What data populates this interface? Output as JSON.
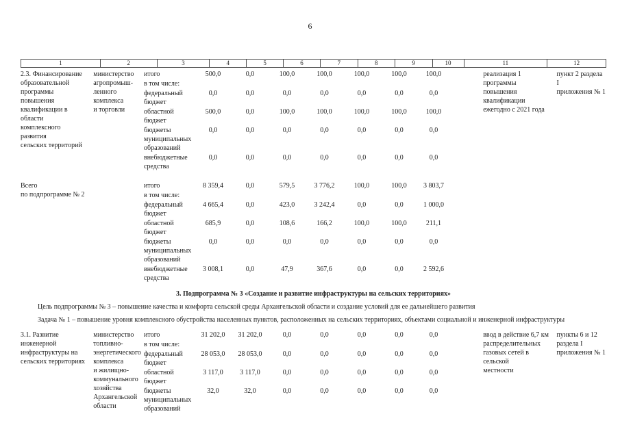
{
  "page": {
    "number": "6"
  },
  "table": {
    "header_cols": [
      "1",
      "2",
      "3",
      "4",
      "5",
      "6",
      "7",
      "8",
      "9",
      "10",
      "11",
      "12"
    ],
    "sections": [
      {
        "col1": "2.3. Финансирование\nобразовательной\nпрограммы повышения\nквалификации в области\nкомплексного развития\nсельских территорий",
        "col2": "министерство\nагропромыш-\nленного\nкомплекса\nи торговли",
        "col11": "реализация 1 программы\nповышения квалификации\nежегодно с 2021 года",
        "col12": "пункт 2 раздела I\nприложения № 1",
        "rows": [
          {
            "label": "итого",
            "v": [
              "500,0",
              "0,0",
              "100,0",
              "100,0",
              "100,0",
              "100,0",
              "100,0"
            ]
          },
          {
            "label": "в том числе:",
            "v": [
              "",
              "",
              "",
              "",
              "",
              "",
              ""
            ]
          },
          {
            "label": "федеральный\nбюджет",
            "v": [
              "0,0",
              "0,0",
              "0,0",
              "0,0",
              "0,0",
              "0,0",
              "0,0"
            ]
          },
          {
            "label": "областной\nбюджет",
            "v": [
              "500,0",
              "0,0",
              "100,0",
              "100,0",
              "100,0",
              "100,0",
              "100,0"
            ]
          },
          {
            "label": "бюджеты\nмуниципальных\nобразований",
            "v": [
              "0,0",
              "0,0",
              "0,0",
              "0,0",
              "0,0",
              "0,0",
              "0,0"
            ]
          },
          {
            "label": "внебюджетные\nсредства",
            "v": [
              "0,0",
              "0,0",
              "0,0",
              "0,0",
              "0,0",
              "0,0",
              "0,0"
            ]
          }
        ]
      },
      {
        "col1": "Всего\nпо подпрограмме № 2",
        "col2": "",
        "col11": "",
        "col12": "",
        "rows": [
          {
            "label": "итого",
            "v": [
              "8 359,4",
              "0,0",
              "579,5",
              "3 776,2",
              "100,0",
              "100,0",
              "3 803,7"
            ]
          },
          {
            "label": "в том числе:",
            "v": [
              "",
              "",
              "",
              "",
              "",
              "",
              ""
            ]
          },
          {
            "label": "федеральный\nбюджет",
            "v": [
              "4 665,4",
              "0,0",
              "423,0",
              "3 242,4",
              "0,0",
              "0,0",
              "1 000,0"
            ]
          },
          {
            "label": "областной\nбюджет",
            "v": [
              "685,9",
              "0,0",
              "108,6",
              "166,2",
              "100,0",
              "100,0",
              "211,1"
            ]
          },
          {
            "label": "бюджеты\nмуниципальных\nобразований",
            "v": [
              "0,0",
              "0,0",
              "0,0",
              "0,0",
              "0,0",
              "0,0",
              "0,0"
            ]
          },
          {
            "label": "внебюджетные\nсредства",
            "v": [
              "3 008,1",
              "0,0",
              "47,9",
              "367,6",
              "0,0",
              "0,0",
              "2 592,6"
            ]
          }
        ]
      },
      {
        "col1": "3.1. Развитие\nинженерной\nинфраструктуры на\nсельских территориях",
        "col2": "министерство\nтопливно-\nэнергетического\nкомплекса\nи жилищно-\nкоммунального\nхозяйства\nАрхангельской\nобласти",
        "col11": "ввод в действие 6,7 км\nраспределительных\nгазовых сетей в сельской\nместности",
        "col12": "пункты 6 и 12\nраздела I\nприложения № 1",
        "rows": [
          {
            "label": "итого",
            "v": [
              "31 202,0",
              "31 202,0",
              "0,0",
              "0,0",
              "0,0",
              "0,0",
              "0,0"
            ]
          },
          {
            "label": "в том числе:",
            "v": [
              "",
              "",
              "",
              "",
              "",
              "",
              ""
            ]
          },
          {
            "label": "федеральный\nбюджет",
            "v": [
              "28 053,0",
              "28 053,0",
              "0,0",
              "0,0",
              "0,0",
              "0,0",
              "0,0"
            ]
          },
          {
            "label": "областной\nбюджет",
            "v": [
              "3 117,0",
              "3 117,0",
              "0,0",
              "0,0",
              "0,0",
              "0,0",
              "0,0"
            ]
          },
          {
            "label": "бюджеты\nмуниципальных\nобразований",
            "v": [
              "32,0",
              "32,0",
              "0,0",
              "0,0",
              "0,0",
              "0,0",
              "0,0"
            ]
          }
        ]
      }
    ]
  },
  "subsection": {
    "heading": "3. Подпрограмма № 3 «Создание и развитие инфраструктуры на сельских территориях»",
    "goal": "Цель подпрограммы № 3 – повышение качества и комфорта сельской среды Архангельской области и создание условий для ее дальнейшего развития",
    "task": "Задача № 1 – повышение уровня комплексного обустройства населенных пунктов, расположенных на сельских территориях, объектами социальной и инженерной инфраструктуры"
  }
}
